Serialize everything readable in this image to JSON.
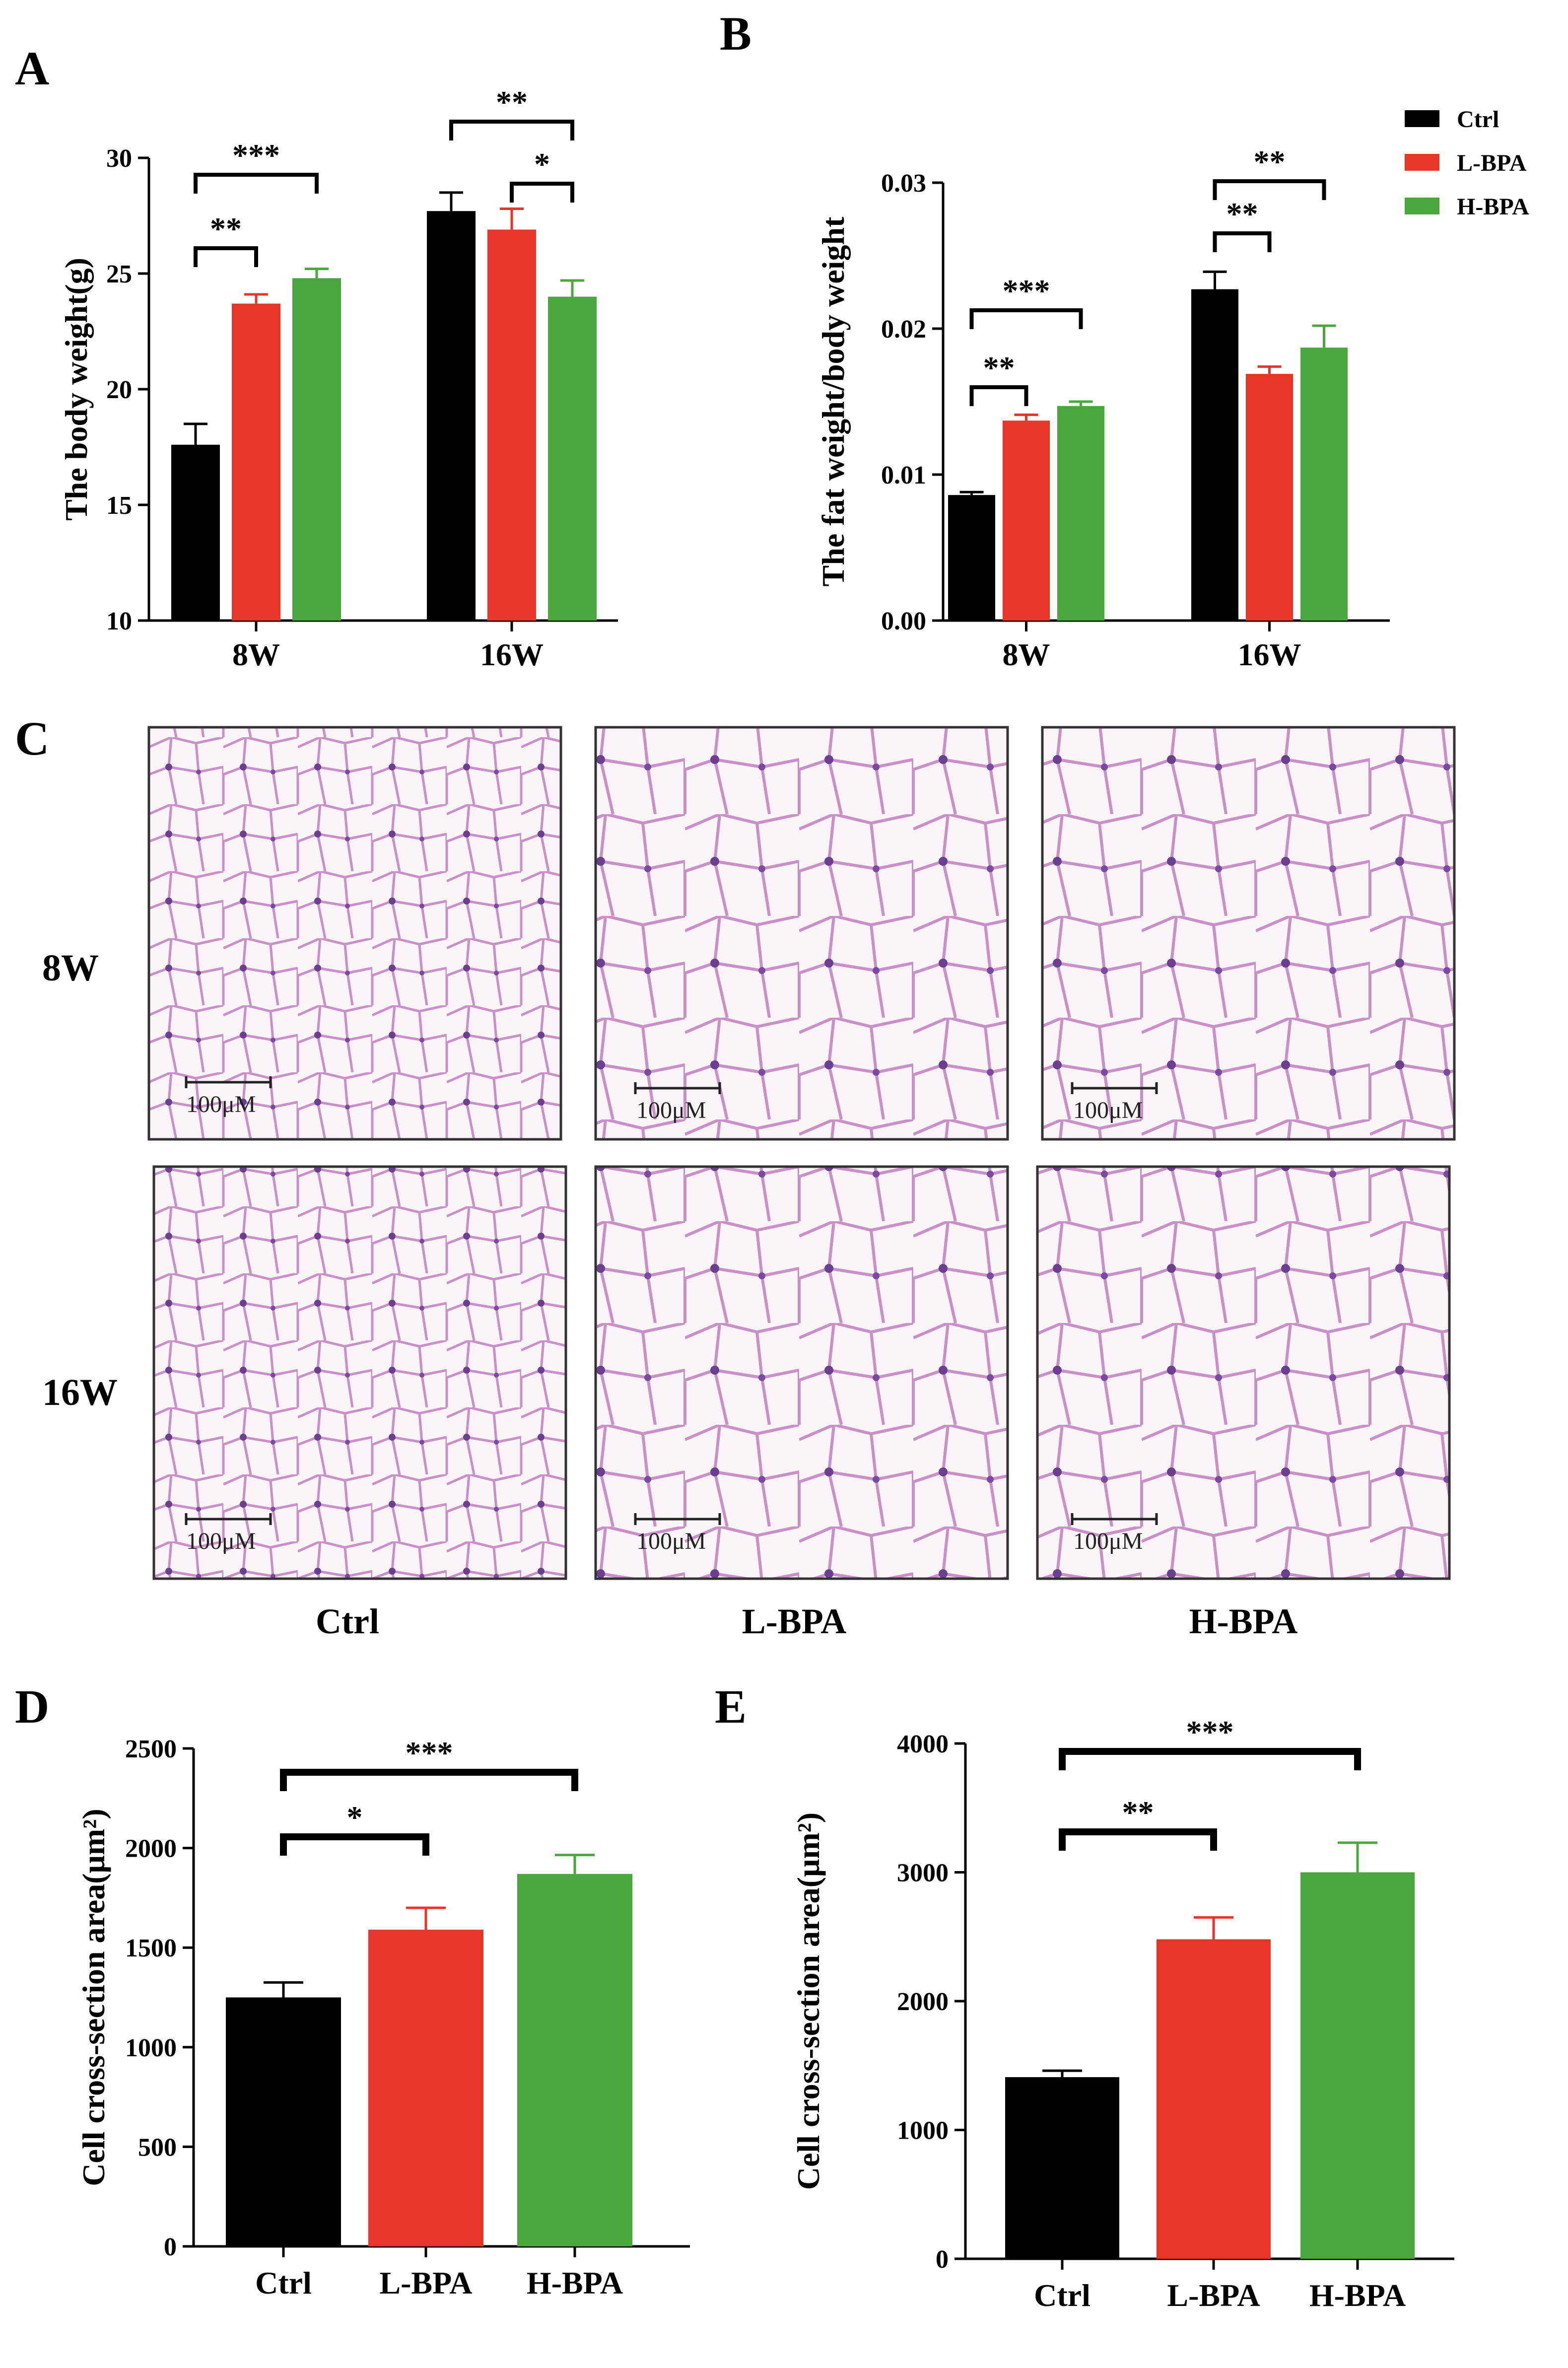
{
  "colors": {
    "ctrl": "#000000",
    "lbpa": "#e8352a",
    "hbpa": "#49a83c",
    "axis": "#000000",
    "tissue_bg": "#fbf5fa",
    "membrane": "#c98fc7",
    "nucleus": "#6a3f90"
  },
  "legend": {
    "items": [
      {
        "label": "Ctrl",
        "color": "#000000"
      },
      {
        "label": "L-BPA",
        "color": "#e8352a"
      },
      {
        "label": "H-BPA",
        "color": "#49a83c"
      }
    ]
  },
  "histology": {
    "panel_label": "C",
    "rows": [
      "8W",
      "16W"
    ],
    "columns": [
      "Ctrl",
      "L-BPA",
      "H-BPA"
    ],
    "scale_bar": "100μM"
  },
  "chart_data": [
    {
      "panel": "A",
      "type": "bar",
      "title": "",
      "xlabel": "",
      "ylabel": "The body weight(g)",
      "ylim": [
        10,
        30
      ],
      "yticks": [
        10,
        15,
        20,
        25,
        30
      ],
      "categories": [
        "8W",
        "16W"
      ],
      "series": [
        {
          "name": "Ctrl",
          "values": [
            17.6,
            27.7
          ],
          "errors": [
            0.9,
            0.8
          ]
        },
        {
          "name": "L-BPA",
          "values": [
            23.7,
            26.9
          ],
          "errors": [
            0.4,
            0.9
          ]
        },
        {
          "name": "H-BPA",
          "values": [
            24.8,
            24.0
          ],
          "errors": [
            0.4,
            0.7
          ]
        }
      ],
      "annotations": [
        {
          "text": "**",
          "group": 0,
          "from": 0,
          "to": 1
        },
        {
          "text": "***",
          "group": 0,
          "from": 0,
          "to": 2
        },
        {
          "text": "**",
          "group": 1,
          "from": 0,
          "to": 2
        },
        {
          "text": "*",
          "group": 1,
          "from": 1,
          "to": 2
        }
      ]
    },
    {
      "panel": "B",
      "type": "bar",
      "title": "",
      "xlabel": "",
      "ylabel": "The fat weight/body weight",
      "ylim": [
        0,
        0.03
      ],
      "yticks": [
        "0.00",
        "0.01",
        "0.02",
        "0.03"
      ],
      "categories": [
        "8W",
        "16W"
      ],
      "series": [
        {
          "name": "Ctrl",
          "values": [
            0.0086,
            0.0227
          ],
          "errors": [
            0.0002,
            0.0012
          ]
        },
        {
          "name": "L-BPA",
          "values": [
            0.0137,
            0.0169
          ],
          "errors": [
            0.0004,
            0.0005
          ]
        },
        {
          "name": "H-BPA",
          "values": [
            0.0147,
            0.0187
          ],
          "errors": [
            0.0003,
            0.0015
          ]
        }
      ],
      "annotations": [
        {
          "text": "**",
          "group": 0,
          "from": 0,
          "to": 1
        },
        {
          "text": "***",
          "group": 0,
          "from": 0,
          "to": 2
        },
        {
          "text": "**",
          "group": 1,
          "from": 0,
          "to": 1
        },
        {
          "text": "**",
          "group": 1,
          "from": 0,
          "to": 2
        }
      ]
    },
    {
      "panel": "D",
      "type": "bar",
      "title": "",
      "xlabel": "",
      "ylabel": "Cell cross-section area(μm²)",
      "ylim": [
        0,
        2500
      ],
      "yticks": [
        0,
        500,
        1000,
        1500,
        2000,
        2500
      ],
      "categories": [
        "Ctrl",
        "L-BPA",
        "H-BPA"
      ],
      "values": [
        1250,
        1590,
        1870
      ],
      "errors": [
        75,
        110,
        95
      ],
      "annotations": [
        {
          "text": "*",
          "from": 0,
          "to": 1
        },
        {
          "text": "***",
          "from": 0,
          "to": 2
        }
      ]
    },
    {
      "panel": "E",
      "type": "bar",
      "title": "",
      "xlabel": "",
      "ylabel": "Cell cross-section area(μm²)",
      "ylim": [
        0,
        4000
      ],
      "yticks": [
        0,
        1000,
        2000,
        3000,
        4000
      ],
      "categories": [
        "Ctrl",
        "L-BPA",
        "H-BPA"
      ],
      "values": [
        1410,
        2480,
        3000
      ],
      "errors": [
        50,
        170,
        230
      ],
      "annotations": [
        {
          "text": "**",
          "from": 0,
          "to": 1
        },
        {
          "text": "***",
          "from": 0,
          "to": 2
        }
      ]
    }
  ]
}
